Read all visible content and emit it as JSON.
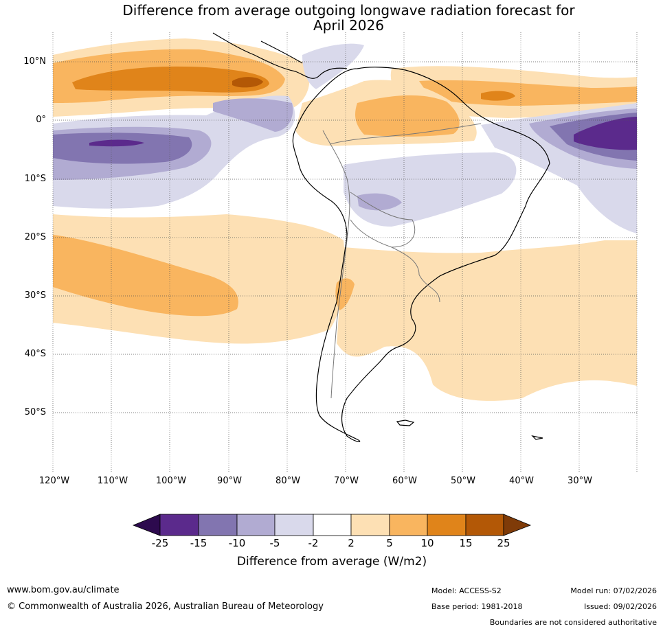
{
  "title": {
    "line1": "Difference from average outgoing longwave radiation forecast for",
    "line2": "April 2026"
  },
  "map": {
    "lat_labels": [
      "10°N",
      "0°",
      "10°S",
      "20°S",
      "30°S",
      "40°S",
      "50°S"
    ],
    "lon_labels": [
      "120°W",
      "110°W",
      "100°W",
      "90°W",
      "80°W",
      "70°W",
      "60°W",
      "50°W",
      "40°W",
      "30°W"
    ],
    "colors": {
      "neg25": "#2d0a4e",
      "neg15": "#5b2a8c",
      "neg10": "#8275b0",
      "neg5": "#b1abd2",
      "neg2": "#d9d9eb",
      "neutral": "#ffffff",
      "pos2": "#fde0b4",
      "pos5": "#f9b55f",
      "pos10": "#e0841a",
      "pos15": "#b35806",
      "pos25": "#7f3b08"
    }
  },
  "colorbar": {
    "ticks": [
      "-25",
      "-15",
      "-10",
      "-5",
      "-2",
      "2",
      "5",
      "10",
      "15",
      "25"
    ],
    "label": "Difference from average (W/m2)"
  },
  "footer": {
    "website": "www.bom.gov.au/climate",
    "copyright": "© Commonwealth of Australia 2026, Australian Bureau of Meteorology",
    "model": "Model: ACCESS-S2",
    "base_period": "Base period: 1981-2018",
    "model_run": "Model run: 07/02/2026",
    "issued": "Issued: 09/02/2026",
    "disclaimer": "Boundaries are not considered authoritative"
  }
}
